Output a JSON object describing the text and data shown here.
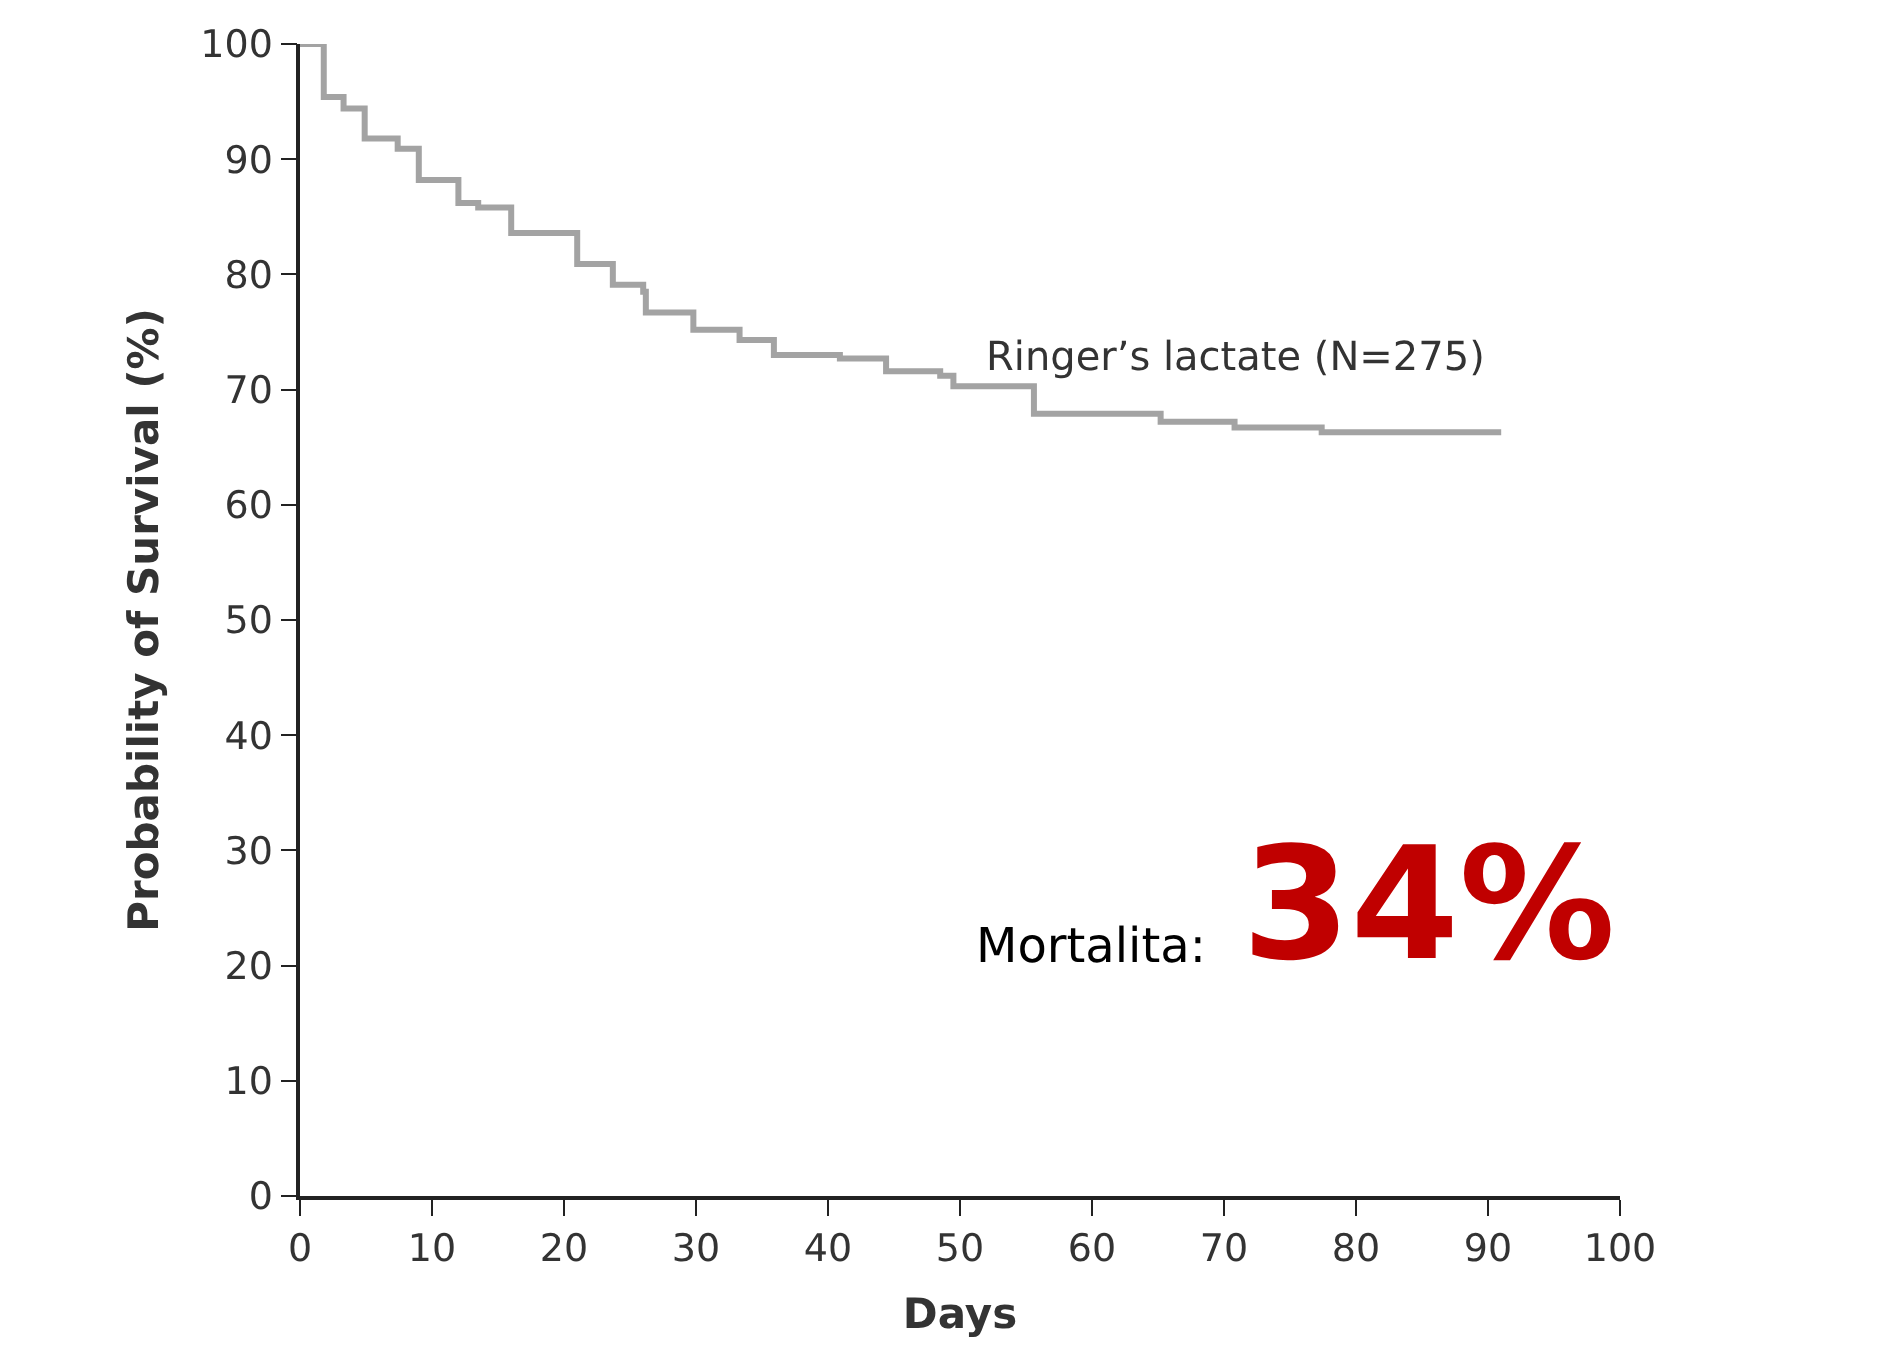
{
  "chart_data": {
    "type": "step",
    "xlabel": "Days",
    "ylabel": "Probability of Survival (%)",
    "x": [
      0,
      0.6,
      1.8,
      3.3,
      4.9,
      7.4,
      9,
      12,
      13.5,
      16,
      19,
      21,
      23.7,
      26,
      26.2,
      29.8,
      33.3,
      35.9,
      40.9,
      44.4,
      48.5,
      49.5,
      55.6,
      65.2,
      70.8,
      77.4,
      91
    ],
    "series": [
      {
        "name": "Ringer’s lactate (N=275)",
        "color": "#a3a3a3",
        "values": [
          100,
          100,
          95.4,
          94.4,
          91.8,
          90.9,
          88.2,
          86.2,
          85.8,
          83.6,
          83.6,
          80.9,
          79.1,
          78.5,
          76.7,
          75.2,
          74.3,
          73,
          72.7,
          71.6,
          71.2,
          70.3,
          67.9,
          67.2,
          66.7,
          66.3,
          66.3
        ]
      }
    ],
    "xlim": [
      0,
      100
    ],
    "xticks": [
      0,
      10,
      20,
      30,
      40,
      50,
      60,
      70,
      80,
      90,
      100
    ],
    "ylim": [
      0,
      100
    ],
    "yticks": [
      0,
      10,
      20,
      30,
      40,
      50,
      60,
      70,
      80,
      90,
      100
    ],
    "annotations": [
      "Mortalita:",
      "34%"
    ]
  }
}
